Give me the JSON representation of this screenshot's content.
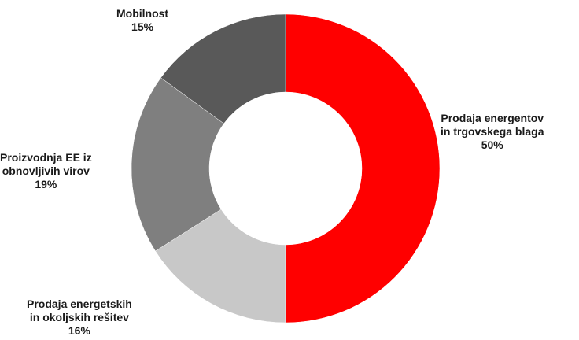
{
  "chart_data": {
    "type": "pie",
    "variant": "donut",
    "title": "",
    "slices": [
      {
        "label_lines": [
          "Prodaja energentov",
          "in trgovskega blaga"
        ],
        "percent_label": "50%",
        "value": 50,
        "color": "#ff0000"
      },
      {
        "label_lines": [
          "Prodaja energetskih",
          "in okoljskih rešitev"
        ],
        "percent_label": "16%",
        "value": 16,
        "color": "#c8c8c8"
      },
      {
        "label_lines": [
          "Proizvodnja EE iz",
          "obnovljivih virov"
        ],
        "percent_label": "19%",
        "value": 19,
        "color": "#7f7f7f"
      },
      {
        "label_lines": [
          "Mobilnost"
        ],
        "percent_label": "15%",
        "value": 15,
        "color": "#595959"
      }
    ],
    "start_angle": "12 o'clock",
    "direction": "clockwise",
    "legend": "none"
  }
}
